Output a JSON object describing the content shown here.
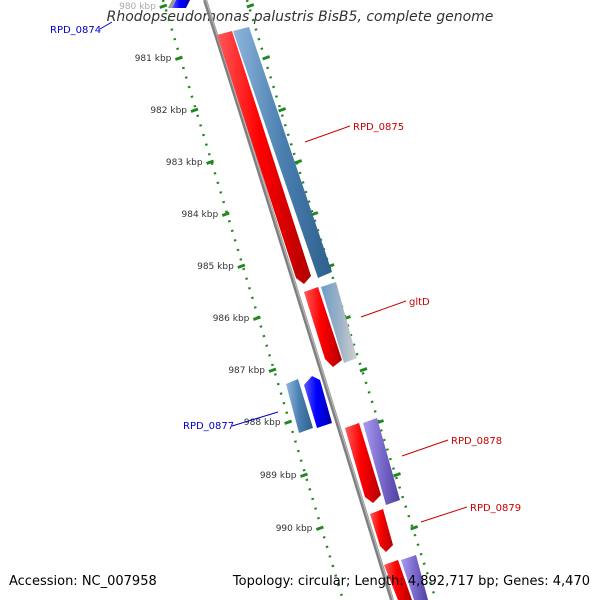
{
  "title": "Rhodopseudomonas palustris BisB5, complete genome",
  "footer": {
    "accession": "Accession: NC_007958",
    "summary": "Topology: circular; Length: 4,892,717 bp; Genes: 4,470"
  },
  "ticks": [
    "980 kbp",
    "981 kbp",
    "982 kbp",
    "983 kbp",
    "984 kbp",
    "985 kbp",
    "986 kbp",
    "987 kbp",
    "988 kbp",
    "989 kbp",
    "990 kbp"
  ],
  "gene_labels": [
    {
      "name": "RPD_0874",
      "color": "#0000cc"
    },
    {
      "name": "RPD_0875",
      "color": "#cc0000"
    },
    {
      "name": "gltD",
      "color": "#cc0000"
    },
    {
      "name": "RPD_0877",
      "color": "#0000cc"
    },
    {
      "name": "RPD_0878",
      "color": "#cc0000"
    },
    {
      "name": "RPD_0879",
      "color": "#cc0000"
    }
  ],
  "colors": {
    "forward_cds": "#ff0000",
    "reverse_cds": "#0000ff",
    "forward_feature": "#4a7fb0",
    "reverse_feature": "#7a6acc",
    "backbone": "#808080",
    "tick": "#228822"
  }
}
